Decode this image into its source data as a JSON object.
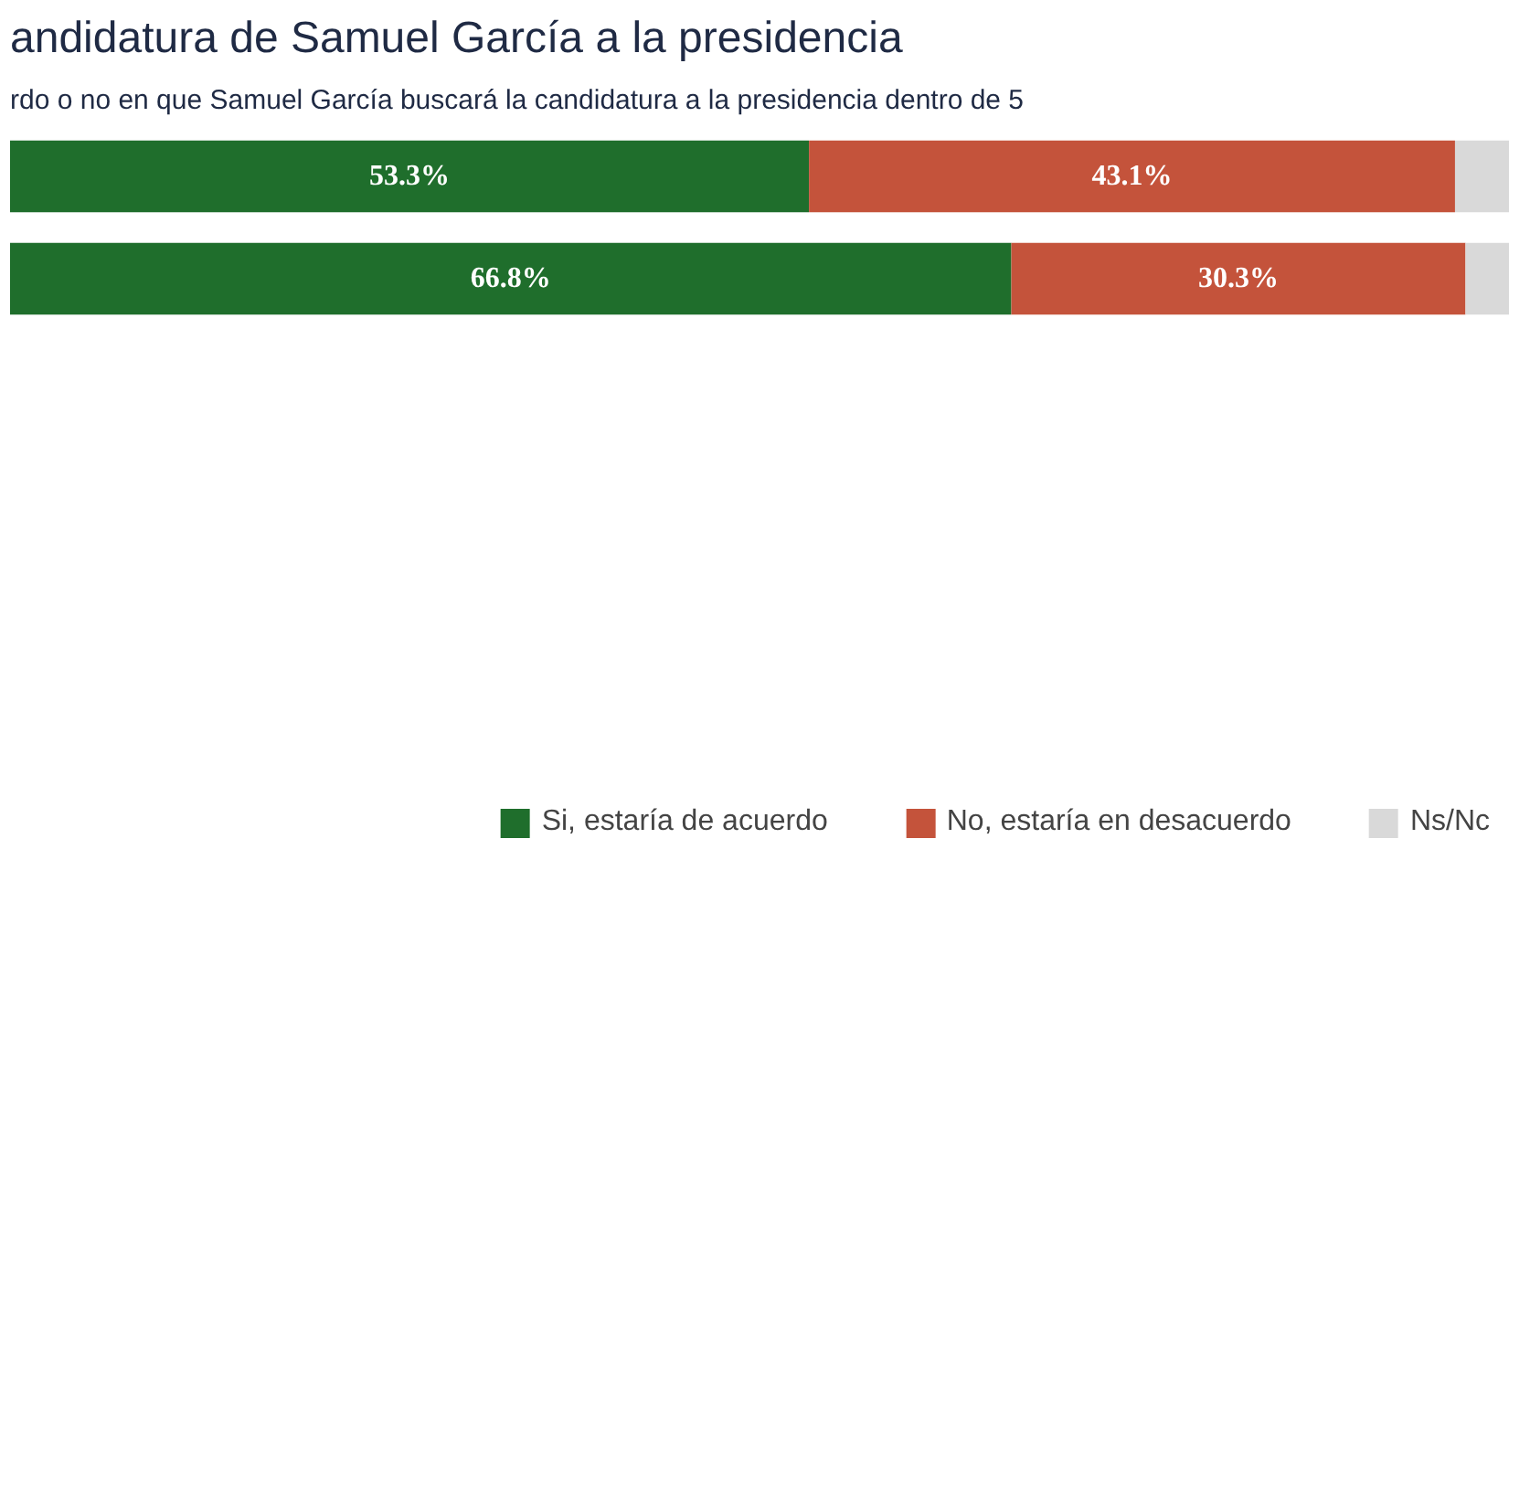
{
  "chart_data": {
    "type": "bar",
    "orientation": "horizontal",
    "stacked": true,
    "title": "andidatura de Samuel García a la presidencia",
    "subtitle": "rdo o no en que Samuel García buscará la candidatura a la presidencia dentro de 5",
    "categories": [
      null,
      null
    ],
    "series": [
      {
        "name": "Si, estaría de acuerdo",
        "color": "#1f6e2c",
        "values": [
          53.3,
          66.8
        ],
        "value_labels": [
          "53.3%",
          "66.8%"
        ]
      },
      {
        "name": "No, estaría en desacuerdo",
        "color": "#c4533b",
        "values": [
          43.1,
          30.3
        ],
        "value_labels": [
          "43.1%",
          "30.3%"
        ]
      },
      {
        "name": "Ns/Nc",
        "color": "#d9d9d9",
        "values": [
          3.6,
          2.9
        ],
        "value_labels": [
          null,
          null
        ]
      }
    ],
    "legend": "bottom",
    "grid": false,
    "tick_labels": false
  }
}
